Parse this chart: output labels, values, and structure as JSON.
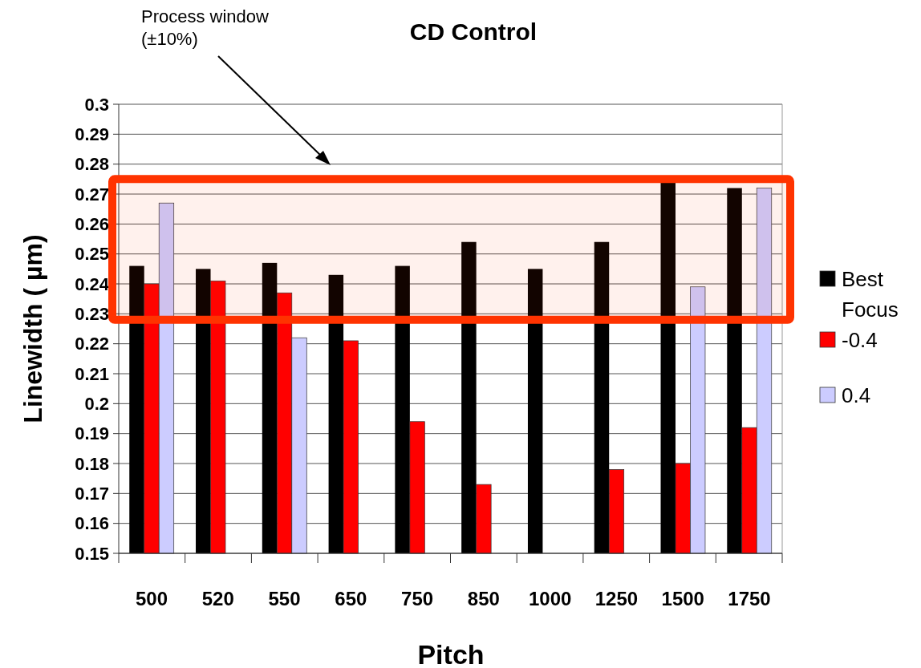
{
  "chart_data": {
    "type": "bar",
    "title": "CD Control",
    "xlabel": "Pitch",
    "ylabel": "Linewidth ( µm)",
    "categories": [
      "500",
      "520",
      "550",
      "650",
      "750",
      "850",
      "1000",
      "1250",
      "1500",
      "1750"
    ],
    "series": [
      {
        "name": "Best Focus",
        "color": "#000000",
        "values": [
          0.246,
          0.245,
          0.247,
          0.243,
          0.246,
          0.254,
          0.245,
          0.254,
          0.274,
          0.272
        ]
      },
      {
        "name": "-0.4",
        "color": "#ff0000",
        "values": [
          0.24,
          0.241,
          0.237,
          0.221,
          0.194,
          0.173,
          null,
          0.178,
          0.18,
          0.192
        ]
      },
      {
        "name": "0.4",
        "color": "#ccccff",
        "values": [
          0.267,
          null,
          0.222,
          null,
          null,
          null,
          null,
          null,
          0.239,
          0.272
        ]
      }
    ],
    "ylim": [
      0.15,
      0.3
    ],
    "yticks": [
      0.15,
      0.16,
      0.17,
      0.18,
      0.19,
      0.2,
      0.21,
      0.22,
      0.23,
      0.24,
      0.25,
      0.26,
      0.27,
      0.28,
      0.29,
      0.3
    ],
    "grid": "y",
    "legend": "right",
    "annotations": [
      "Process window\n(±10%)"
    ],
    "bands": [
      {
        "axis": "y",
        "from": 0.228,
        "to": 0.275,
        "color": "#ff3300"
      }
    ]
  }
}
